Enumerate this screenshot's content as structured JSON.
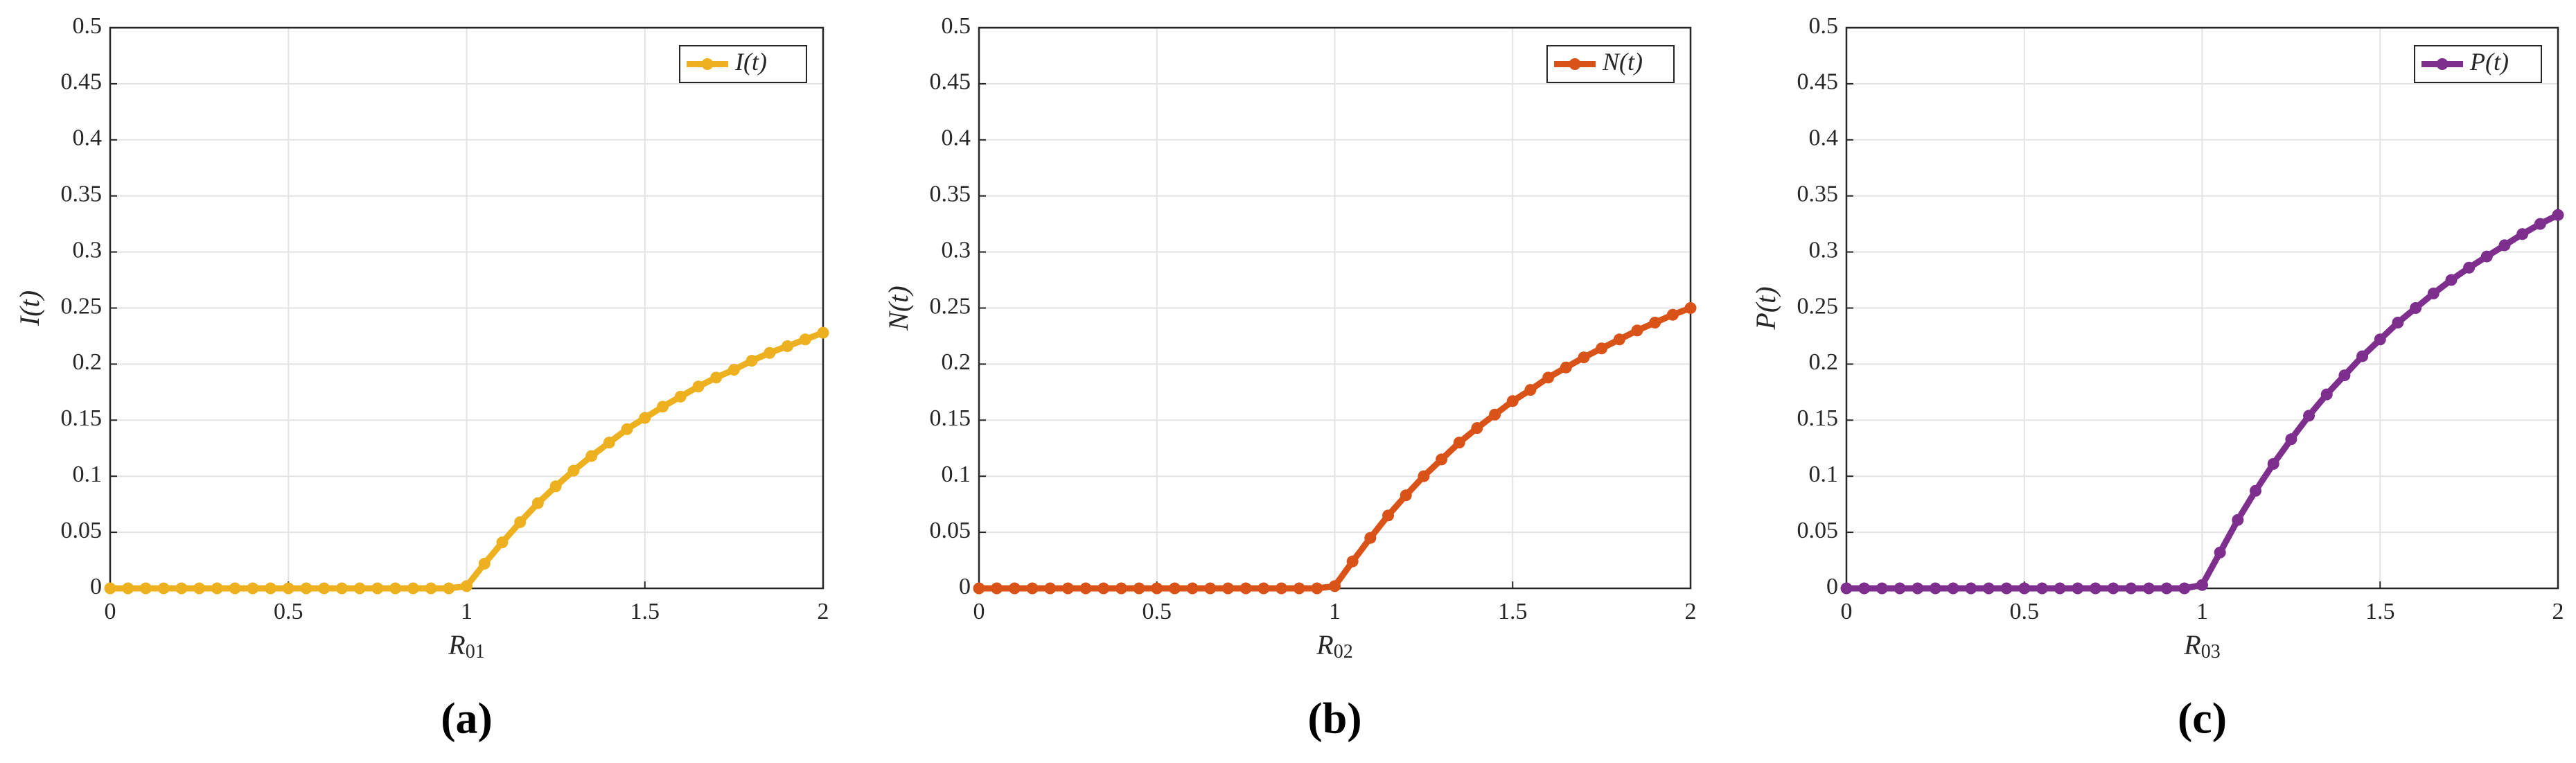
{
  "chart_data": [
    {
      "type": "line",
      "label": "(a)",
      "xlabel": "R01",
      "ylabel": "I(t)",
      "x": [
        0,
        0.05,
        0.1,
        0.15,
        0.2,
        0.25,
        0.3,
        0.35,
        0.4,
        0.45,
        0.5,
        0.55,
        0.6,
        0.65,
        0.7,
        0.75,
        0.8,
        0.85,
        0.9,
        0.95,
        1,
        1.05,
        1.1,
        1.15,
        1.2,
        1.25,
        1.3,
        1.35,
        1.4,
        1.45,
        1.5,
        1.55,
        1.6,
        1.65,
        1.7,
        1.75,
        1.8,
        1.85,
        1.9,
        1.95,
        2
      ],
      "series": [
        {
          "name": "I(t)",
          "color": "#EDB120",
          "values": [
            0,
            0,
            0,
            0,
            0,
            0,
            0,
            0,
            0,
            0,
            0,
            0,
            0,
            0,
            0,
            0,
            0,
            0,
            0,
            0,
            0.002,
            0.022,
            0.041,
            0.059,
            0.076,
            0.091,
            0.105,
            0.118,
            0.13,
            0.142,
            0.152,
            0.162,
            0.171,
            0.18,
            0.188,
            0.195,
            0.203,
            0.21,
            0.216,
            0.222,
            0.228
          ]
        }
      ],
      "xlim": [
        0,
        2
      ],
      "ylim": [
        0,
        0.5
      ],
      "xticks": [
        0,
        0.5,
        1,
        1.5,
        2
      ],
      "yticks": [
        0,
        0.05,
        0.1,
        0.15,
        0.2,
        0.25,
        0.3,
        0.35,
        0.4,
        0.45,
        0.5
      ],
      "grid": true,
      "legend": "upper right"
    },
    {
      "type": "line",
      "label": "(b)",
      "xlabel": "R02",
      "ylabel": "N(t)",
      "x": [
        0,
        0.05,
        0.1,
        0.15,
        0.2,
        0.25,
        0.3,
        0.35,
        0.4,
        0.45,
        0.5,
        0.55,
        0.6,
        0.65,
        0.7,
        0.75,
        0.8,
        0.85,
        0.9,
        0.95,
        1,
        1.05,
        1.1,
        1.15,
        1.2,
        1.25,
        1.3,
        1.35,
        1.4,
        1.45,
        1.5,
        1.55,
        1.6,
        1.65,
        1.7,
        1.75,
        1.8,
        1.85,
        1.9,
        1.95,
        2
      ],
      "series": [
        {
          "name": "N(t)",
          "color": "#D95319",
          "values": [
            0,
            0,
            0,
            0,
            0,
            0,
            0,
            0,
            0,
            0,
            0,
            0,
            0,
            0,
            0,
            0,
            0,
            0,
            0,
            0,
            0.002,
            0.024,
            0.045,
            0.065,
            0.083,
            0.1,
            0.115,
            0.13,
            0.143,
            0.155,
            0.167,
            0.177,
            0.188,
            0.197,
            0.206,
            0.214,
            0.222,
            0.23,
            0.237,
            0.244,
            0.25
          ]
        }
      ],
      "xlim": [
        0,
        2
      ],
      "ylim": [
        0,
        0.5
      ],
      "xticks": [
        0,
        0.5,
        1,
        1.5,
        2
      ],
      "yticks": [
        0,
        0.05,
        0.1,
        0.15,
        0.2,
        0.25,
        0.3,
        0.35,
        0.4,
        0.45,
        0.5
      ],
      "grid": true,
      "legend": "upper right"
    },
    {
      "type": "line",
      "label": "(c)",
      "xlabel": "R03",
      "ylabel": "P(t)",
      "x": [
        0,
        0.05,
        0.1,
        0.15,
        0.2,
        0.25,
        0.3,
        0.35,
        0.4,
        0.45,
        0.5,
        0.55,
        0.6,
        0.65,
        0.7,
        0.75,
        0.8,
        0.85,
        0.9,
        0.95,
        1,
        1.05,
        1.1,
        1.15,
        1.2,
        1.25,
        1.3,
        1.35,
        1.4,
        1.45,
        1.5,
        1.55,
        1.6,
        1.65,
        1.7,
        1.75,
        1.8,
        1.85,
        1.9,
        1.95,
        2
      ],
      "series": [
        {
          "name": "P(t)",
          "color": "#7E2F8E",
          "values": [
            0,
            0,
            0,
            0,
            0,
            0,
            0,
            0,
            0,
            0,
            0,
            0,
            0,
            0,
            0,
            0,
            0,
            0,
            0,
            0,
            0.003,
            0.032,
            0.061,
            0.087,
            0.111,
            0.133,
            0.154,
            0.173,
            0.19,
            0.207,
            0.222,
            0.237,
            0.25,
            0.263,
            0.275,
            0.286,
            0.296,
            0.306,
            0.316,
            0.325,
            0.333
          ]
        }
      ],
      "xlim": [
        0,
        2
      ],
      "ylim": [
        0,
        0.5
      ],
      "xticks": [
        0,
        0.5,
        1,
        1.5,
        2
      ],
      "yticks": [
        0,
        0.05,
        0.1,
        0.15,
        0.2,
        0.25,
        0.3,
        0.35,
        0.4,
        0.45,
        0.5
      ],
      "grid": true,
      "legend": "upper right"
    }
  ]
}
